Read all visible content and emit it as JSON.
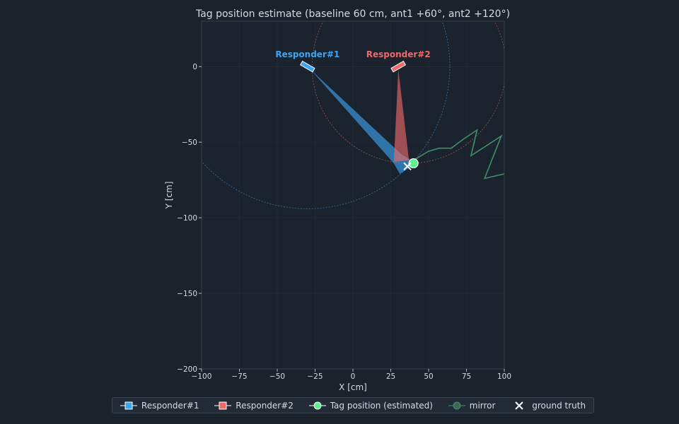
{
  "colors": {
    "background": "#1a222c",
    "axes": "#1b232e",
    "responder1": "#3da5f4",
    "responder2": "#f06a6a",
    "tag": "#5ef28a",
    "mirror": "#3e8f67",
    "text": "#d6dbe0",
    "grid": "#2a3440"
  },
  "chart_data": {
    "type": "scatter",
    "title": "Tag position estimate (baseline 60 cm, ant1 +60°, ant2 +120°)",
    "xlabel": "X [cm]",
    "ylabel": "Y [cm]",
    "xlim": [
      -100,
      100
    ],
    "ylim": [
      -200,
      30
    ],
    "xticks": [
      -100,
      -75,
      -50,
      -25,
      0,
      25,
      50,
      75,
      100
    ],
    "yticks": [
      0,
      -50,
      -100,
      -150,
      -200
    ],
    "xtick_labels": [
      "−100",
      "−75",
      "−50",
      "−25",
      "0",
      "25",
      "50",
      "75",
      "100"
    ],
    "ytick_labels": [
      "0",
      "−50",
      "−100",
      "−150",
      "−200"
    ],
    "grid": true,
    "legend_position": "bottom",
    "responders": [
      {
        "name": "Responder#1",
        "x": -30,
        "y": 0,
        "angle_deg": 30,
        "label_x": -30,
        "label_y": 8,
        "circle_center": [
          -30,
          0
        ],
        "circle_radius": 94
      },
      {
        "name": "Responder#2",
        "x": 30,
        "y": 0,
        "angle_deg": -30,
        "label_x": 30,
        "label_y": 8,
        "circle_center": [
          37,
          0
        ],
        "circle_radius": 64
      }
    ],
    "cones": [
      {
        "responder": "Responder#1",
        "points": [
          [
            -28,
            -2
          ],
          [
            32,
            -58
          ],
          [
            42,
            -64
          ],
          [
            31,
            -71
          ],
          [
            27,
            -64
          ]
        ]
      },
      {
        "responder": "Responder#2",
        "points": [
          [
            30,
            -2
          ],
          [
            37,
            -62
          ],
          [
            27,
            -63
          ]
        ]
      }
    ],
    "tag_estimate": {
      "x": 40,
      "y": -64
    },
    "ground_truth": {
      "x": 36,
      "y": -66
    },
    "mirror_path": {
      "x": [
        40,
        50,
        57,
        65,
        73,
        82,
        78,
        98,
        87,
        100
      ],
      "y": [
        -62,
        -56,
        -54,
        -54,
        -48,
        -42,
        -59,
        -46,
        -74,
        -71
      ]
    },
    "legend": [
      {
        "label": "Responder#1",
        "kind": "square",
        "color": "#3da5f4"
      },
      {
        "label": "Responder#2",
        "kind": "square",
        "color": "#f06a6a"
      },
      {
        "label": "Tag position (estimated)",
        "kind": "circle",
        "color": "#5ef28a"
      },
      {
        "label": "mirror",
        "kind": "circle-dim",
        "color": "#3e8f67"
      },
      {
        "label": "ground truth",
        "kind": "cross",
        "color": "#ffffff"
      }
    ]
  }
}
